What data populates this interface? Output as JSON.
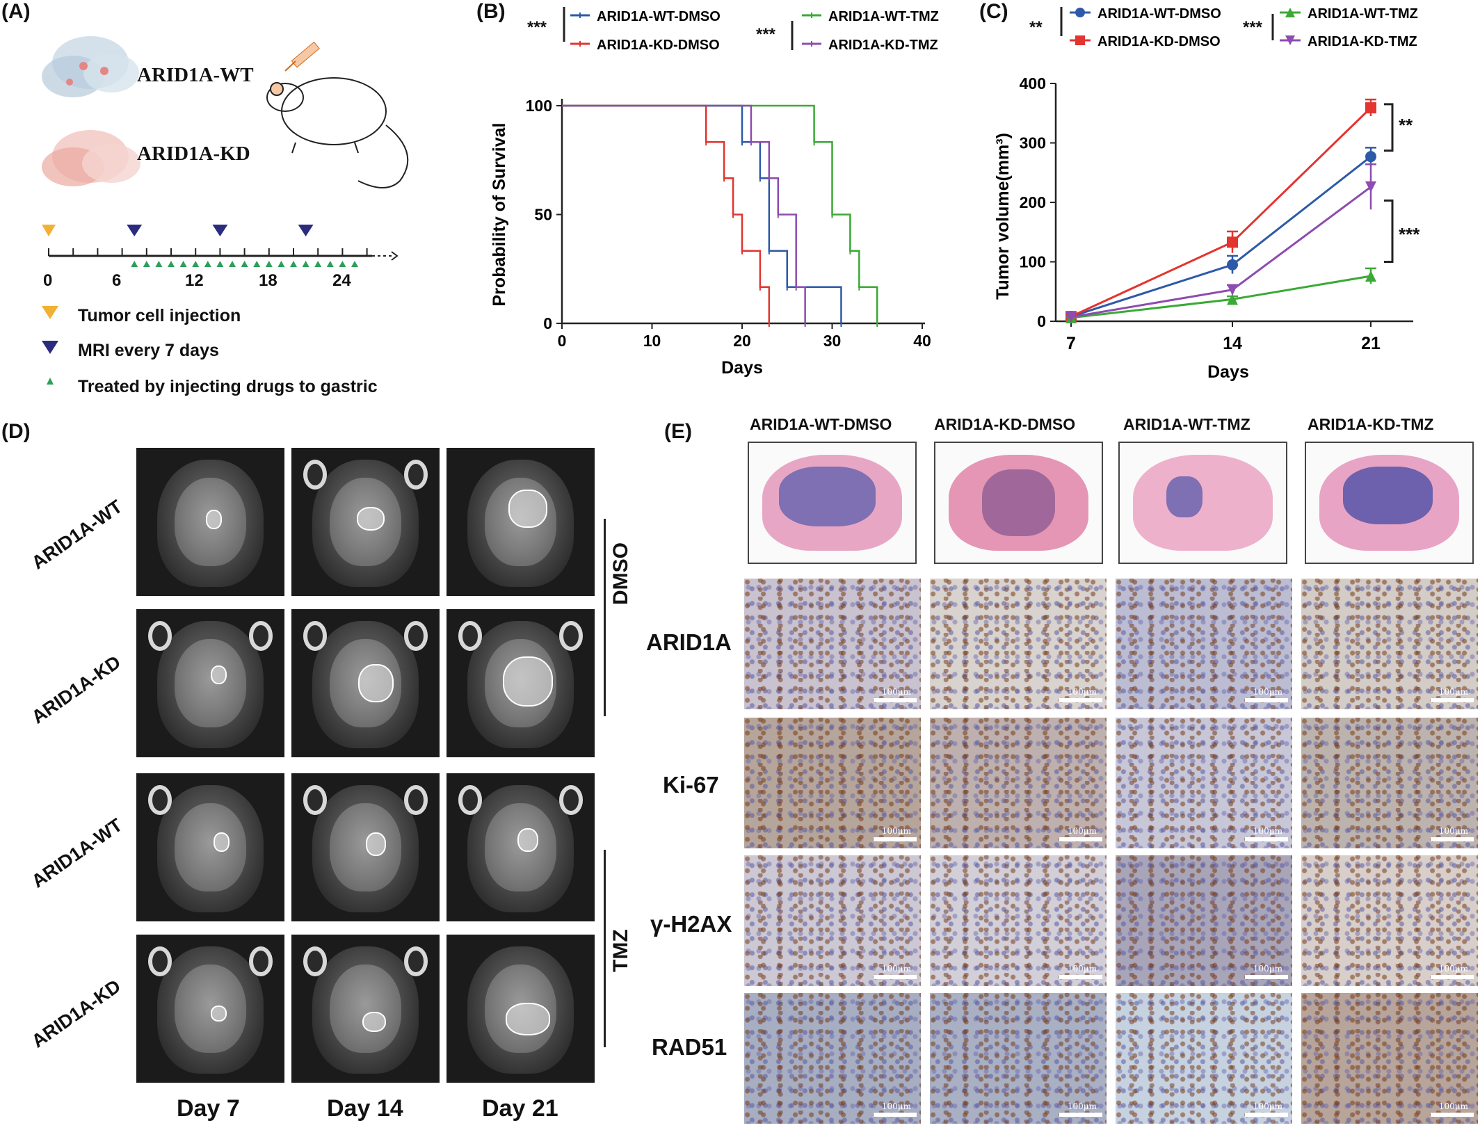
{
  "panels": {
    "A": {
      "label": "(A)",
      "cell_wt": "ARID1A-WT",
      "cell_kd": "ARID1A-KD",
      "timeline_ticks": [
        "0",
        "6",
        "12",
        "18",
        "24"
      ],
      "legend": [
        {
          "text": "Tumor cell injection",
          "marker": "orange-down-triangle",
          "color": "#f2b134"
        },
        {
          "text": "MRI every 7 days",
          "marker": "navy-down-triangle",
          "color": "#2b2c7f"
        },
        {
          "text": "Treated by injecting drugs to gastric",
          "marker": "green-up-triangle",
          "color": "#2ba05a"
        }
      ]
    },
    "B": {
      "label": "(B)",
      "sig_left": "***",
      "sig_right": "***"
    },
    "C": {
      "label": "(C)",
      "sig_left": "**",
      "sig_right": "***",
      "bracket_upper": "**",
      "bracket_lower": "***"
    },
    "D": {
      "label": "(D)",
      "rows": [
        "ARID1A-WT",
        "ARID1A-KD",
        "ARID1A-WT",
        "ARID1A-KD"
      ],
      "cols": [
        "Day 7",
        "Day 14",
        "Day 21"
      ],
      "group_dmso": "DMSO",
      "group_tmz": "TMZ"
    },
    "E": {
      "label": "(E)",
      "cols": [
        "ARID1A-WT-DMSO",
        "ARID1A-KD-DMSO",
        "ARID1A-WT-TMZ",
        "ARID1A-KD-TMZ"
      ],
      "rows": [
        "ARID1A",
        "Ki-67",
        "γ-H2AX",
        "RAD51"
      ],
      "scale_text": "100μm"
    }
  },
  "chart_data": [
    {
      "panel": "B",
      "type": "line",
      "subtype": "kaplan-meier-step",
      "xlabel": "Days",
      "ylabel": "Probability of Survival",
      "xlim": [
        0,
        40
      ],
      "ylim": [
        0,
        100
      ],
      "xticks": [
        "0",
        "10",
        "20",
        "30",
        "40"
      ],
      "yticks": [
        "0",
        "50",
        "100"
      ],
      "series": [
        {
          "name": "ARID1A-WT-DMSO",
          "color": "#2d5aa8",
          "x": [
            0,
            20,
            22,
            23,
            25,
            31
          ],
          "y": [
            100,
            83.3,
            66.7,
            33.3,
            16.7,
            0
          ]
        },
        {
          "name": "ARID1A-KD-DMSO",
          "color": "#e3342f",
          "x": [
            0,
            16,
            18,
            19,
            20,
            22,
            23
          ],
          "y": [
            100,
            83.3,
            66.7,
            50,
            33.3,
            16.7,
            0
          ]
        },
        {
          "name": "ARID1A-WT-TMZ",
          "color": "#3aa935",
          "x": [
            0,
            28,
            30,
            32,
            33,
            35
          ],
          "y": [
            100,
            83.3,
            50,
            33.3,
            16.7,
            0
          ]
        },
        {
          "name": "ARID1A-KD-TMZ",
          "color": "#8e4bb0",
          "x": [
            0,
            21,
            23,
            24,
            26,
            27
          ],
          "y": [
            100,
            83.3,
            66.7,
            50,
            16.7,
            0
          ]
        }
      ]
    },
    {
      "panel": "C",
      "type": "line",
      "xlabel": "Days",
      "ylabel": "Tumor volume(mm³)",
      "categories": [
        "7",
        "14",
        "21"
      ],
      "ylim": [
        0,
        400
      ],
      "yticks": [
        "0",
        "100",
        "200",
        "300",
        "400"
      ],
      "series": [
        {
          "name": "ARID1A-WT-DMSO",
          "color": "#2d5aa8",
          "marker": "circle",
          "values": [
            8,
            95,
            277
          ],
          "err": [
            3,
            15,
            15
          ]
        },
        {
          "name": "ARID1A-KD-DMSO",
          "color": "#e3342f",
          "marker": "square",
          "values": [
            8,
            133,
            359
          ],
          "err": [
            3,
            18,
            14
          ]
        },
        {
          "name": "ARID1A-WT-TMZ",
          "color": "#3aa935",
          "marker": "triangle-up",
          "values": [
            6,
            37,
            76
          ],
          "err": [
            2,
            5,
            13
          ]
        },
        {
          "name": "ARID1A-KD-TMZ",
          "color": "#8e4bb0",
          "marker": "triangle-down",
          "values": [
            7,
            53,
            226
          ],
          "err": [
            2,
            8,
            38
          ]
        }
      ]
    }
  ]
}
